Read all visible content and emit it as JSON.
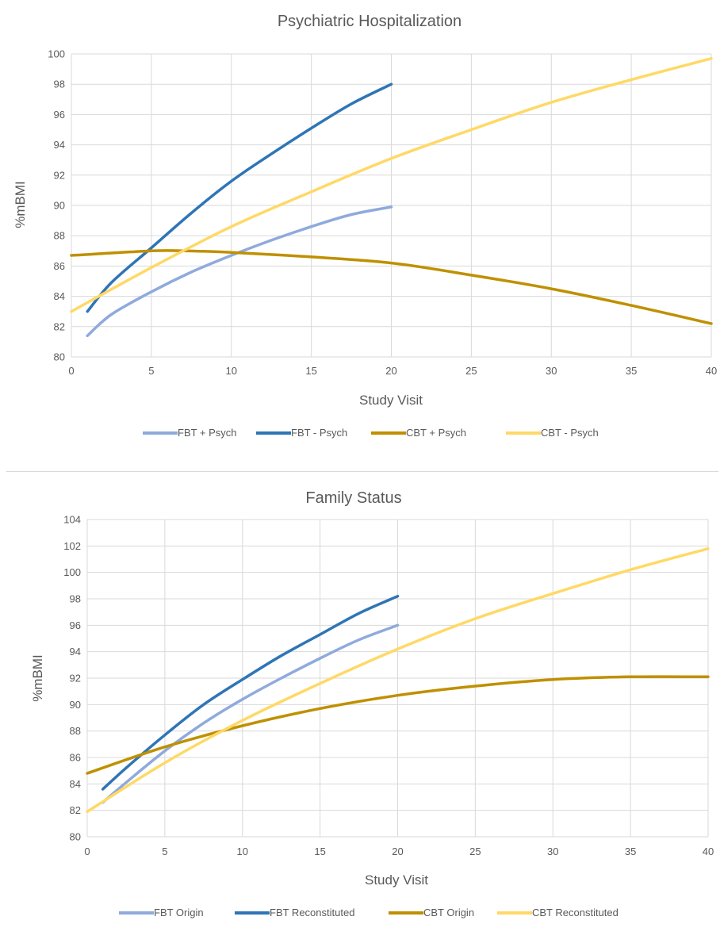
{
  "chart_data": [
    {
      "type": "line",
      "title": "Psychiatric Hospitalization",
      "xlabel": "Study Visit",
      "ylabel": "%mBMI",
      "xlim": [
        0,
        40
      ],
      "ylim": [
        80,
        100
      ],
      "xticks": [
        0,
        5,
        10,
        15,
        20,
        25,
        30,
        35,
        40
      ],
      "yticks": [
        80,
        82,
        84,
        86,
        88,
        90,
        92,
        94,
        96,
        98,
        100
      ],
      "grid": "vertical and horizontal",
      "legend": "bottom",
      "series": [
        {
          "name": "FBT + Psych",
          "color": "#8faadc",
          "x": [
            1,
            2.5,
            5,
            7.5,
            10,
            12.5,
            15,
            17.5,
            20
          ],
          "y": [
            81.4,
            82.8,
            84.3,
            85.6,
            86.7,
            87.7,
            88.6,
            89.4,
            89.9
          ]
        },
        {
          "name": "FBT - Psych",
          "color": "#2e75b6",
          "x": [
            1,
            2.5,
            5,
            7.5,
            10,
            12.5,
            15,
            17.5,
            20
          ],
          "y": [
            83.0,
            84.9,
            87.2,
            89.5,
            91.6,
            93.4,
            95.1,
            96.7,
            98.0
          ]
        },
        {
          "name": "CBT + Psych",
          "color": "#bf9000",
          "x": [
            0,
            5,
            7,
            10,
            15,
            20,
            25,
            30,
            35,
            40
          ],
          "y": [
            86.7,
            87.0,
            87.0,
            86.9,
            86.6,
            86.2,
            85.4,
            84.5,
            83.4,
            82.2
          ]
        },
        {
          "name": "CBT - Psych",
          "color": "#ffd966",
          "x": [
            0,
            5,
            10,
            15,
            20,
            25,
            30,
            35,
            40
          ],
          "y": [
            83.0,
            85.9,
            88.6,
            90.9,
            93.1,
            95.0,
            96.8,
            98.3,
            99.7
          ]
        }
      ]
    },
    {
      "type": "line",
      "title": "Family Status",
      "xlabel": "Study Visit",
      "ylabel": "%mBMI",
      "xlim": [
        0,
        40
      ],
      "ylim": [
        80,
        104
      ],
      "xticks": [
        0,
        5,
        10,
        15,
        20,
        25,
        30,
        35,
        40
      ],
      "yticks": [
        80,
        82,
        84,
        86,
        88,
        90,
        92,
        94,
        96,
        98,
        100,
        102,
        104
      ],
      "grid": "vertical and horizontal",
      "legend": "bottom",
      "series": [
        {
          "name": "FBT Origin",
          "color": "#8faadc",
          "x": [
            1,
            2.5,
            5,
            7.5,
            10,
            12.5,
            15,
            17.5,
            20
          ],
          "y": [
            82.6,
            84.1,
            86.5,
            88.6,
            90.4,
            92.0,
            93.5,
            94.9,
            96.0
          ]
        },
        {
          "name": "FBT Reconstituted",
          "color": "#2e75b6",
          "x": [
            1,
            2.5,
            5,
            7.5,
            10,
            12.5,
            15,
            17.5,
            20
          ],
          "y": [
            83.6,
            85.2,
            87.7,
            90.0,
            91.9,
            93.7,
            95.3,
            96.9,
            98.2
          ]
        },
        {
          "name": "CBT Origin",
          "color": "#bf9000",
          "x": [
            0,
            5,
            10,
            15,
            20,
            25,
            30,
            35,
            40
          ],
          "y": [
            84.8,
            86.8,
            88.4,
            89.7,
            90.7,
            91.4,
            91.9,
            92.1,
            92.1
          ]
        },
        {
          "name": "CBT Reconstituted",
          "color": "#ffd966",
          "x": [
            0,
            5,
            10,
            15,
            20,
            25,
            30,
            35,
            40
          ],
          "y": [
            81.9,
            85.6,
            88.8,
            91.6,
            94.2,
            96.5,
            98.4,
            100.2,
            101.8
          ]
        }
      ]
    }
  ]
}
